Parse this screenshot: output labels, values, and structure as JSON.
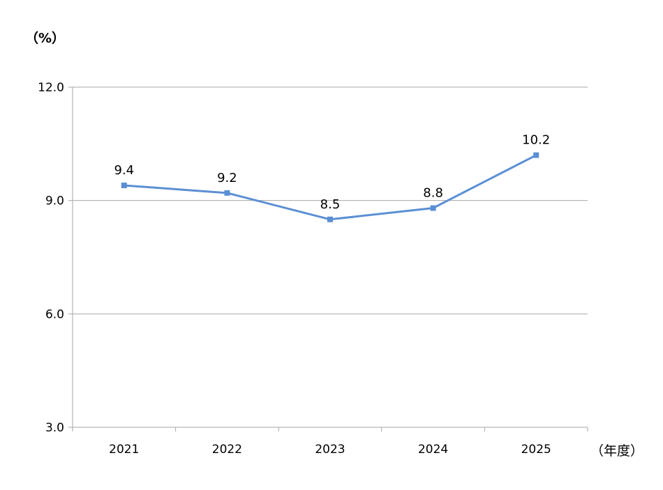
{
  "chart_data": {
    "type": "line",
    "categories": [
      "2021",
      "2022",
      "2023",
      "2024",
      "2025"
    ],
    "series": [
      {
        "values": [
          9.4,
          9.2,
          8.5,
          8.8,
          10.2
        ]
      }
    ],
    "data_labels": [
      "9.4",
      "9.2",
      "8.5",
      "8.8",
      "10.2"
    ],
    "ylabel": "（%）",
    "xlabel": "（年度）",
    "ylim": [
      3.0,
      12.0
    ],
    "yticks": [
      3.0,
      6.0,
      9.0,
      12.0
    ],
    "ytick_labels": [
      "3.0",
      "6.0",
      "9.0",
      "12.0"
    ],
    "grid": true,
    "line_color": "#5b8fd4",
    "grid_color": "#a6a6a6"
  }
}
